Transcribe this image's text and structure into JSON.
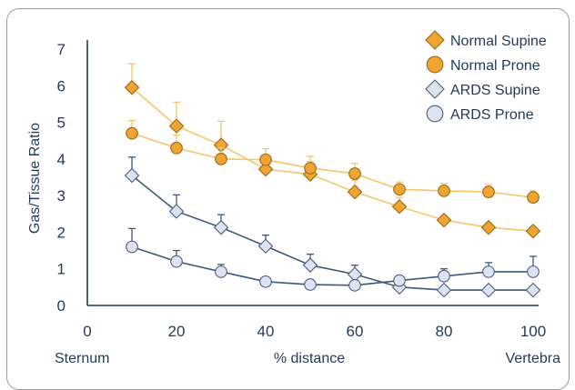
{
  "chart_data": {
    "type": "line",
    "x": [
      10,
      20,
      30,
      40,
      50,
      60,
      70,
      80,
      90,
      100
    ],
    "xlim": [
      0,
      100
    ],
    "ylim": [
      0,
      7
    ],
    "xticks": [
      "0",
      "20",
      "40",
      "60",
      "80",
      "100"
    ],
    "yticks": [
      "0",
      "1",
      "2",
      "3",
      "4",
      "5",
      "6",
      "7"
    ],
    "xlabel": "% distance",
    "xlabel_left": "Sternum",
    "xlabel_right": "Vertebra",
    "ylabel": "Gas/Tissue Ratio",
    "grid": false,
    "legend_position": "top-right",
    "series": [
      {
        "name": "Normal Supine",
        "marker": "diamond",
        "color": "#f0a431",
        "line_color": "#f5c56a",
        "values": [
          5.95,
          4.9,
          4.38,
          3.72,
          3.58,
          3.1,
          2.7,
          2.33,
          2.13,
          2.03
        ],
        "error_up": [
          0.65,
          0.65,
          0.65,
          0.35,
          0.35,
          0.32,
          0.25,
          0.12,
          0.12,
          0.12
        ]
      },
      {
        "name": "Normal Prone",
        "marker": "circle",
        "color": "#f0a431",
        "line_color": "#f5c56a",
        "values": [
          4.7,
          4.3,
          4.0,
          3.98,
          3.75,
          3.6,
          3.17,
          3.13,
          3.1,
          2.95
        ],
        "error_up": [
          0.35,
          0.35,
          0.3,
          0.3,
          0.32,
          0.28,
          0.2,
          0.2,
          0.2,
          0.18
        ]
      },
      {
        "name": "ARDS Supine",
        "marker": "diamond",
        "color": "#dde3f1",
        "line_color": "#3b5a7a",
        "values": [
          3.55,
          2.57,
          2.13,
          1.62,
          1.1,
          0.85,
          0.5,
          0.42,
          0.42,
          0.42
        ],
        "error_up": [
          0.5,
          0.45,
          0.35,
          0.3,
          0.3,
          0.25,
          0,
          0,
          0,
          0
        ]
      },
      {
        "name": "ARDS Prone",
        "marker": "circle",
        "color": "#dde3f1",
        "line_color": "#3b5a7a",
        "values": [
          1.6,
          1.2,
          0.92,
          0.65,
          0.57,
          0.55,
          0.68,
          0.8,
          0.92,
          0.92
        ],
        "error_up": [
          0.5,
          0.3,
          0.2,
          0,
          0,
          0,
          0,
          0.2,
          0.25,
          0.42
        ]
      }
    ]
  }
}
